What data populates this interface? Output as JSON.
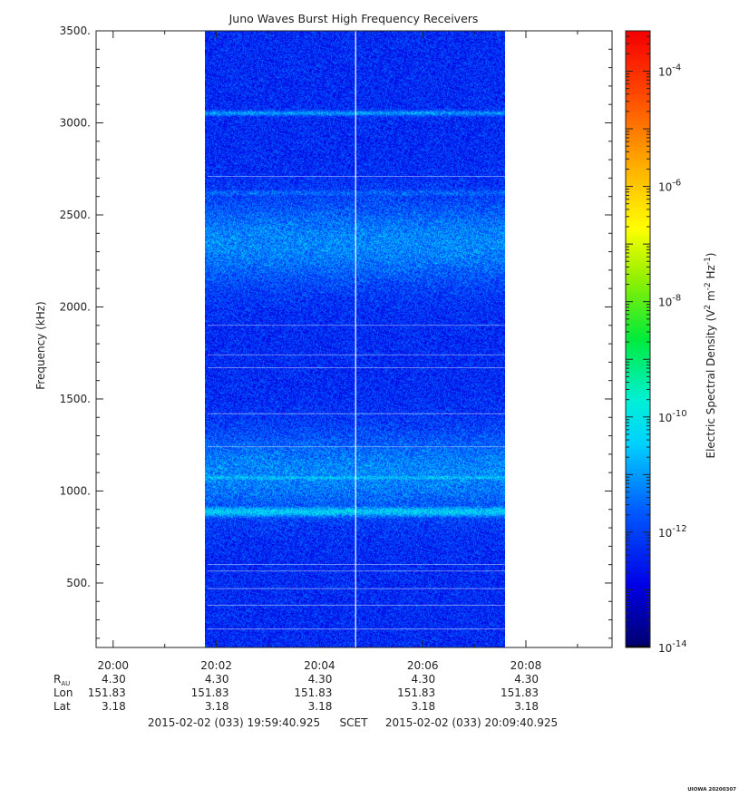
{
  "chart_data": {
    "type": "heatmap",
    "title": "Juno Waves Burst High Frequency Receivers",
    "ylabel": "Frequency (kHz)",
    "colorbar_label": "Electric Spectral Density (V^2 m^-2 Hz^-1)",
    "x_range_minutes": [
      19.67,
      29.67
    ],
    "data_x_range_minutes": [
      21.83,
      27.6
    ],
    "ylim": [
      150,
      3500
    ],
    "x_ticks": [
      {
        "minute": 20,
        "label": "20:00"
      },
      {
        "minute": 22,
        "label": "20:02"
      },
      {
        "minute": 24,
        "label": "20:04"
      },
      {
        "minute": 26,
        "label": "20:06"
      },
      {
        "minute": 28,
        "label": "20:08"
      }
    ],
    "y_ticks": [
      {
        "value": 500,
        "label": "500."
      },
      {
        "value": 1000,
        "label": "1000."
      },
      {
        "value": 1500,
        "label": "1500."
      },
      {
        "value": 2000,
        "label": "2000."
      },
      {
        "value": 2500,
        "label": "2500."
      },
      {
        "value": 3000,
        "label": "3000."
      },
      {
        "value": 3500,
        "label": "3500."
      }
    ],
    "colorbar": {
      "log_range": [
        -14,
        -3.3
      ],
      "ticks": [
        {
          "exp": -14,
          "label": "10",
          "sup": "-14"
        },
        {
          "exp": -12,
          "label": "10",
          "sup": "-12"
        },
        {
          "exp": -10,
          "label": "10",
          "sup": "-10"
        },
        {
          "exp": -8,
          "label": "10",
          "sup": "-8"
        },
        {
          "exp": -6,
          "label": "10",
          "sup": "-6"
        },
        {
          "exp": -4,
          "label": "10",
          "sup": "-4"
        }
      ]
    },
    "ephemeris": {
      "rows": [
        {
          "label": "R",
          "sub": "AU",
          "values": [
            "4.30",
            "4.30",
            "4.30",
            "4.30",
            "4.30"
          ]
        },
        {
          "label": "Lon",
          "sub": "",
          "values": [
            "151.83",
            "151.83",
            "151.83",
            "151.83",
            "151.83"
          ]
        },
        {
          "label": "Lat",
          "sub": "",
          "values": [
            "3.18",
            "3.18",
            "3.18",
            "3.18",
            "3.18"
          ]
        }
      ]
    },
    "time_range": {
      "start": "2015-02-02 (033) 19:59:40.925",
      "mid": "SCET",
      "end": "2015-02-02 (033) 20:09:40.925"
    },
    "bands": [
      {
        "freq": 3055,
        "level": -11.0,
        "width": 14
      },
      {
        "freq": 2620,
        "level": -11.6,
        "width": 20
      },
      {
        "freq": 2350,
        "level": -11.2,
        "width": 220
      },
      {
        "freq": 1100,
        "level": -11.2,
        "width": 220
      },
      {
        "freq": 1075,
        "level": -10.6,
        "width": 18
      },
      {
        "freq": 890,
        "level": -10.4,
        "width": 30
      }
    ],
    "white_vertical_line_minute": 24.7,
    "white_horizontal_lines_khz": [
      2710,
      1900,
      1740,
      1670,
      1420,
      1240,
      600,
      565,
      470,
      380,
      250
    ],
    "footer_stamp": "UIOWA 20200307"
  }
}
